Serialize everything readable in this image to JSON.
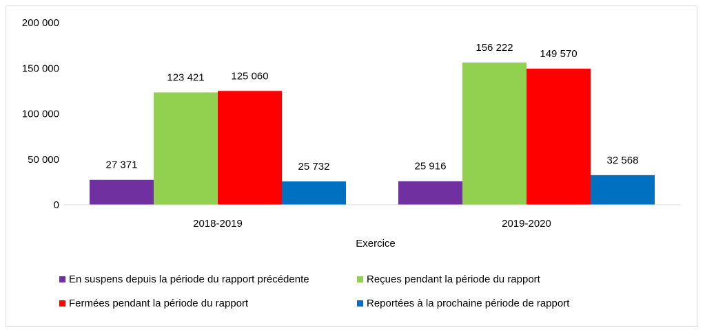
{
  "chart_data": {
    "type": "bar",
    "categories": [
      "2018-2019",
      "2019-2020"
    ],
    "series": [
      {
        "name": "En suspens depuis la période du rapport précédente",
        "values": [
          27371,
          25916
        ],
        "labels": [
          "27 371",
          "25 916"
        ],
        "color": "#7030A0"
      },
      {
        "name": "Reçues pendant la période du rapport",
        "values": [
          123421,
          156222
        ],
        "labels": [
          "123 421",
          "156 222"
        ],
        "color": "#92D050"
      },
      {
        "name": "Fermées pendant la période du rapport",
        "values": [
          125060,
          149570
        ],
        "labels": [
          "125 060",
          "149 570"
        ],
        "color": "#FF0000"
      },
      {
        "name": "Reportées à la prochaine période de rapport",
        "values": [
          25732,
          32568
        ],
        "labels": [
          "25 732",
          "32 568"
        ],
        "color": "#0070C0"
      }
    ],
    "title": "",
    "xlabel": "Exercice",
    "ylabel": "",
    "ylim": [
      0,
      200000
    ],
    "yticks": [
      0,
      50000,
      100000,
      150000,
      200000
    ],
    "ytick_labels": [
      "0",
      "50 000",
      "100 000",
      "150 000",
      "200 000"
    ],
    "grid": false,
    "legend_position": "bottom"
  }
}
